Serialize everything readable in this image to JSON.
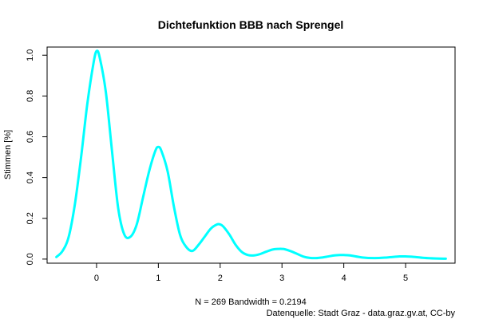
{
  "chart_data": {
    "type": "line",
    "title": "Dichtefunktion BBB nach Sprengel",
    "xlabel": "N = 269   Bandwidth = 0.2194",
    "ylabel": "Stimmen [%]",
    "source": "Datenquelle: Stadt Graz - data.graz.gv.at, CC-by",
    "xlim": [
      -0.8,
      5.8
    ],
    "ylim": [
      -0.02,
      1.04
    ],
    "x_ticks": [
      0,
      1,
      2,
      3,
      4,
      5
    ],
    "y_ticks": [
      0.0,
      0.2,
      0.4,
      0.6,
      0.8,
      1.0
    ],
    "x_tick_labels": [
      "0",
      "1",
      "2",
      "3",
      "4",
      "5"
    ],
    "y_tick_labels": [
      "0.0",
      "0.2",
      "0.4",
      "0.6",
      "0.8",
      "1.0"
    ],
    "grid": false,
    "series": [
      {
        "color": "#00ffff",
        "x": [
          -0.65,
          -0.55,
          -0.45,
          -0.35,
          -0.25,
          -0.15,
          -0.05,
          0.0,
          0.05,
          0.15,
          0.25,
          0.35,
          0.45,
          0.55,
          0.65,
          0.75,
          0.85,
          0.95,
          1.0,
          1.05,
          1.15,
          1.25,
          1.35,
          1.45,
          1.55,
          1.65,
          1.75,
          1.85,
          1.95,
          2.0,
          2.05,
          2.15,
          2.25,
          2.35,
          2.45,
          2.55,
          2.65,
          2.75,
          2.85,
          2.95,
          3.0,
          3.05,
          3.15,
          3.25,
          3.35,
          3.45,
          3.55,
          3.65,
          3.75,
          3.85,
          3.95,
          4.0,
          4.1,
          4.3,
          4.5,
          4.7,
          4.9,
          5.0,
          5.1,
          5.3,
          5.5,
          5.65
        ],
        "y": [
          0.01,
          0.04,
          0.11,
          0.27,
          0.5,
          0.76,
          0.96,
          1.02,
          0.99,
          0.82,
          0.53,
          0.25,
          0.12,
          0.11,
          0.17,
          0.3,
          0.43,
          0.53,
          0.55,
          0.53,
          0.43,
          0.26,
          0.12,
          0.06,
          0.04,
          0.07,
          0.11,
          0.15,
          0.17,
          0.17,
          0.16,
          0.12,
          0.07,
          0.035,
          0.02,
          0.018,
          0.025,
          0.037,
          0.047,
          0.05,
          0.05,
          0.048,
          0.038,
          0.025,
          0.012,
          0.006,
          0.005,
          0.008,
          0.013,
          0.018,
          0.02,
          0.02,
          0.018,
          0.008,
          0.005,
          0.008,
          0.013,
          0.013,
          0.012,
          0.006,
          0.003,
          0.002
        ]
      }
    ]
  }
}
